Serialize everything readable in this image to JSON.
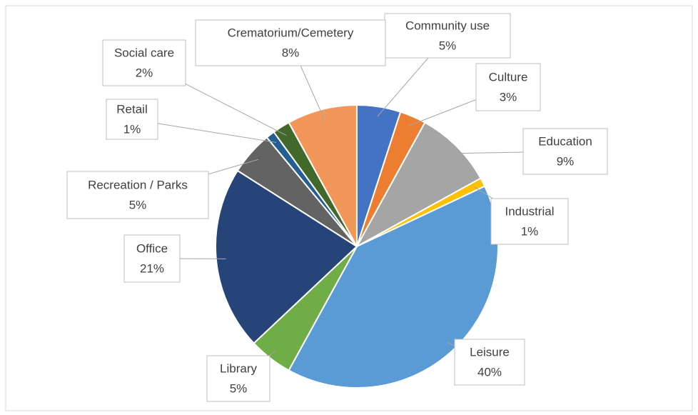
{
  "chart_data": {
    "type": "pie",
    "categories": [
      "Community use",
      "Culture",
      "Education",
      "Industrial",
      "Leisure",
      "Library",
      "Office",
      "Recreation / Parks",
      "Retail",
      "Social care",
      "Crematorium/Cemetery"
    ],
    "values": [
      5,
      3,
      9,
      1,
      40,
      5,
      21,
      5,
      1,
      2,
      8
    ],
    "value_labels": [
      "5%",
      "3%",
      "9%",
      "1%",
      "40%",
      "5%",
      "21%",
      "5%",
      "1%",
      "2%",
      "8%"
    ],
    "colors": [
      "#4472c4",
      "#ed7d31",
      "#a5a5a5",
      "#ffc000",
      "#5b9bd5",
      "#70ad47",
      "#264478",
      "#636363",
      "#255e91",
      "#43682b",
      "#f1975a"
    ]
  }
}
